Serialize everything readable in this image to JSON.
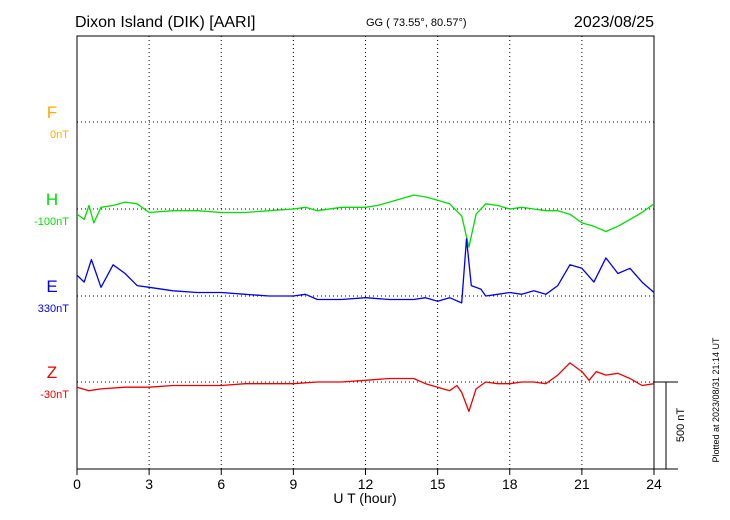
{
  "header": {
    "station": "Dixon Island (DIK)  [AARI]",
    "coords": "GG ( 73.55°,  80.57°)",
    "date": "2023/08/25"
  },
  "footer": {
    "plotted": "Plotted at 2023/08/31 21:14 UT"
  },
  "scale_bar": {
    "label": "500 nT"
  },
  "colors": {
    "F": "#ffaa00",
    "H": "#00dd00",
    "E": "#0000ee",
    "Z": "#ee0000",
    "axis": "#000000"
  },
  "chart_data": {
    "type": "line",
    "title": "Dixon Island (DIK)  [AARI]",
    "xlabel": "U T (hour)",
    "xlim": [
      0,
      24
    ],
    "x_ticks": [
      0,
      3,
      6,
      9,
      12,
      15,
      18,
      21,
      24
    ],
    "grid": true,
    "scale_nT": 500,
    "panel_spacing_nT": 500,
    "series": [
      {
        "name": "F",
        "baseline_label": "0nT",
        "color": "#ffaa00",
        "x": [],
        "y": []
      },
      {
        "name": "H",
        "baseline_label": "-100nT",
        "color": "#00dd00",
        "x": [
          0,
          0.3,
          0.5,
          0.7,
          1.0,
          1.5,
          2.0,
          2.5,
          3.0,
          4.0,
          5.0,
          6.0,
          7.0,
          8.0,
          9.0,
          9.5,
          10.0,
          11.0,
          12.0,
          12.5,
          13.0,
          13.5,
          14.0,
          14.5,
          15.0,
          15.5,
          16.0,
          16.3,
          16.6,
          17.0,
          17.5,
          18.0,
          18.5,
          19.0,
          19.5,
          20.0,
          20.5,
          21.0,
          21.5,
          22.0,
          22.5,
          23.0,
          23.5,
          24.0
        ],
        "y": [
          -30,
          -60,
          20,
          -80,
          10,
          20,
          40,
          30,
          -20,
          -10,
          -10,
          -20,
          -20,
          -10,
          0,
          10,
          -10,
          10,
          10,
          20,
          40,
          60,
          80,
          70,
          50,
          30,
          -40,
          -220,
          -30,
          30,
          20,
          0,
          10,
          0,
          -10,
          -10,
          -30,
          -80,
          -100,
          -130,
          -100,
          -60,
          -20,
          30
        ]
      },
      {
        "name": "E",
        "baseline_label": "330nT",
        "color": "#0000ee",
        "x": [
          0,
          0.3,
          0.6,
          1.0,
          1.5,
          2.0,
          2.5,
          3.0,
          4.0,
          5.0,
          6.0,
          7.0,
          8.0,
          9.0,
          9.5,
          10.0,
          11.0,
          12.0,
          13.0,
          14.0,
          14.5,
          15.0,
          15.5,
          16.0,
          16.2,
          16.4,
          16.8,
          17.0,
          17.5,
          18.0,
          18.5,
          19.0,
          19.5,
          20.0,
          20.5,
          21.0,
          21.5,
          22.0,
          22.5,
          23.0,
          23.5,
          24.0
        ],
        "y": [
          120,
          80,
          210,
          50,
          180,
          130,
          60,
          50,
          30,
          20,
          20,
          10,
          0,
          0,
          10,
          -20,
          -20,
          -10,
          -20,
          -20,
          -10,
          -30,
          -10,
          -40,
          330,
          60,
          40,
          0,
          10,
          20,
          10,
          30,
          10,
          60,
          180,
          160,
          80,
          220,
          130,
          160,
          80,
          20
        ]
      },
      {
        "name": "Z",
        "baseline_label": "-30nT",
        "color": "#ee0000",
        "x": [
          0,
          0.5,
          1.0,
          2.0,
          3.0,
          4.0,
          5.0,
          6.0,
          7.0,
          8.0,
          9.0,
          10.0,
          11.0,
          12.0,
          13.0,
          14.0,
          14.5,
          15.0,
          15.5,
          15.8,
          16.0,
          16.3,
          16.6,
          17.0,
          17.5,
          18.0,
          18.5,
          19.0,
          19.5,
          20.0,
          20.5,
          21.0,
          21.3,
          21.6,
          22.0,
          22.5,
          23.0,
          23.5,
          24.0
        ],
        "y": [
          -30,
          -50,
          -40,
          -30,
          -30,
          -20,
          -20,
          -20,
          -10,
          -10,
          -10,
          0,
          0,
          10,
          20,
          20,
          -10,
          -30,
          -50,
          -20,
          -60,
          -170,
          -40,
          0,
          -10,
          -10,
          0,
          0,
          -10,
          40,
          110,
          60,
          10,
          60,
          40,
          50,
          20,
          -20,
          -10
        ]
      }
    ]
  }
}
